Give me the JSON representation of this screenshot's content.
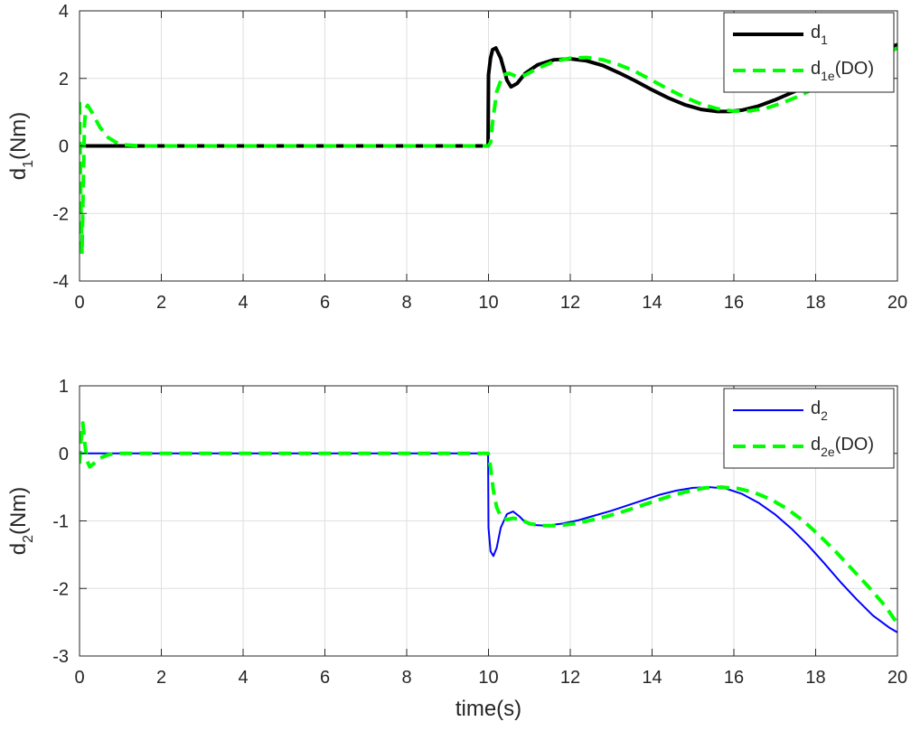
{
  "chart_data": [
    {
      "type": "line",
      "id": "top",
      "ylabel": "d",
      "ylabel_sub": "1",
      "ylabel_suffix": "(Nm)",
      "xlabel": "",
      "xlim": [
        0,
        20
      ],
      "ylim": [
        -4,
        4
      ],
      "xticks": [
        "0",
        "2",
        "4",
        "6",
        "8",
        "10",
        "12",
        "14",
        "16",
        "18",
        "20"
      ],
      "yticks": [
        "4",
        "2",
        "0",
        "-2",
        "-4"
      ],
      "grid": true,
      "legend_position": "top-right",
      "series": [
        {
          "name": "d",
          "name_sub": "1",
          "name_suffix": "",
          "color": "#000000",
          "style": "solid",
          "x": [
            0,
            9.99,
            10.0,
            10.05,
            10.1,
            10.18,
            10.3,
            10.45,
            10.55,
            10.7,
            10.9,
            11.2,
            11.6,
            12.0,
            12.4,
            12.8,
            13.2,
            13.6,
            14.0,
            14.4,
            14.8,
            15.2,
            15.6,
            15.9,
            16.2,
            16.6,
            17.0,
            17.5,
            18.0,
            18.5,
            19.0,
            19.5,
            20.0
          ],
          "y": [
            0,
            0,
            2.1,
            2.6,
            2.85,
            2.9,
            2.6,
            1.95,
            1.75,
            1.85,
            2.15,
            2.4,
            2.55,
            2.58,
            2.52,
            2.38,
            2.16,
            1.92,
            1.66,
            1.42,
            1.22,
            1.08,
            1.02,
            1.02,
            1.06,
            1.18,
            1.36,
            1.62,
            1.9,
            2.2,
            2.5,
            2.78,
            3.0
          ]
        },
        {
          "name": "d",
          "name_sub": "1e",
          "name_suffix": "(DO)",
          "color": "#00ff00",
          "style": "dashed",
          "x": [
            0,
            0.03,
            0.06,
            0.09,
            0.12,
            0.15,
            0.2,
            0.3,
            0.5,
            0.7,
            0.9,
            1.1,
            1.5,
            9.99,
            10.05,
            10.1,
            10.2,
            10.35,
            10.5,
            10.7,
            10.9,
            11.2,
            11.6,
            12.0,
            12.4,
            12.8,
            13.2,
            13.6,
            14.0,
            14.4,
            14.8,
            15.2,
            15.6,
            16.0,
            16.4,
            16.8,
            17.2,
            17.6,
            18.0,
            18.5,
            19.0,
            19.5,
            20.0
          ],
          "y": [
            1.3,
            -1.5,
            -3.2,
            -1.2,
            0.6,
            1.1,
            1.2,
            1.0,
            0.55,
            0.25,
            0.1,
            0.03,
            0,
            0,
            0.1,
            0.7,
            1.6,
            2.1,
            2.15,
            2.05,
            2.1,
            2.3,
            2.5,
            2.6,
            2.62,
            2.55,
            2.4,
            2.2,
            1.94,
            1.68,
            1.44,
            1.24,
            1.1,
            1.03,
            1.04,
            1.12,
            1.28,
            1.48,
            1.72,
            2.0,
            2.3,
            2.6,
            2.9
          ]
        }
      ]
    },
    {
      "type": "line",
      "id": "bottom",
      "ylabel": "d",
      "ylabel_sub": "2",
      "ylabel_suffix": "(Nm)",
      "xlabel": "time(s)",
      "xlim": [
        0,
        20
      ],
      "ylim": [
        -3,
        1
      ],
      "xticks": [
        "0",
        "2",
        "4",
        "6",
        "8",
        "10",
        "12",
        "14",
        "16",
        "18",
        "20"
      ],
      "yticks": [
        "1",
        "0",
        "-1",
        "-2",
        "-3"
      ],
      "grid": true,
      "legend_position": "top-right",
      "series": [
        {
          "name": "d",
          "name_sub": "2",
          "name_suffix": "",
          "color": "#0000ff",
          "style": "solid",
          "x": [
            0,
            9.99,
            10.0,
            10.05,
            10.12,
            10.2,
            10.3,
            10.45,
            10.6,
            10.75,
            10.9,
            11.1,
            11.4,
            11.8,
            12.2,
            12.6,
            13.0,
            13.4,
            13.8,
            14.2,
            14.6,
            15.0,
            15.4,
            15.8,
            16.2,
            16.6,
            17.0,
            17.4,
            17.8,
            18.2,
            18.6,
            19.0,
            19.4,
            19.8,
            20.0
          ],
          "y": [
            0,
            0,
            -1.1,
            -1.45,
            -1.52,
            -1.4,
            -1.1,
            -0.9,
            -0.86,
            -0.93,
            -1.02,
            -1.06,
            -1.07,
            -1.04,
            -0.99,
            -0.92,
            -0.85,
            -0.77,
            -0.69,
            -0.61,
            -0.55,
            -0.51,
            -0.5,
            -0.52,
            -0.6,
            -0.73,
            -0.9,
            -1.11,
            -1.35,
            -1.62,
            -1.9,
            -2.16,
            -2.4,
            -2.58,
            -2.65
          ]
        },
        {
          "name": "d",
          "name_sub": "2e",
          "name_suffix": "(DO)",
          "color": "#00ff00",
          "style": "dashed",
          "x": [
            0,
            0.04,
            0.08,
            0.12,
            0.18,
            0.25,
            0.35,
            0.5,
            0.7,
            0.9,
            9.99,
            10.05,
            10.12,
            10.2,
            10.3,
            10.45,
            10.6,
            10.8,
            11.0,
            11.3,
            11.7,
            12.1,
            12.5,
            12.9,
            13.3,
            13.7,
            14.1,
            14.5,
            14.9,
            15.3,
            15.7,
            16.1,
            16.5,
            16.9,
            17.3,
            17.7,
            18.1,
            18.5,
            18.9,
            19.3,
            19.7,
            20.0
          ],
          "y": [
            -0.15,
            0.2,
            0.45,
            0.2,
            -0.1,
            -0.2,
            -0.15,
            -0.07,
            -0.02,
            0,
            0,
            -0.2,
            -0.55,
            -0.8,
            -0.93,
            -0.98,
            -0.96,
            -0.98,
            -1.04,
            -1.07,
            -1.07,
            -1.04,
            -0.99,
            -0.93,
            -0.86,
            -0.78,
            -0.7,
            -0.62,
            -0.56,
            -0.51,
            -0.5,
            -0.52,
            -0.58,
            -0.68,
            -0.82,
            -1.0,
            -1.22,
            -1.46,
            -1.72,
            -1.98,
            -2.26,
            -2.52
          ]
        }
      ]
    }
  ]
}
